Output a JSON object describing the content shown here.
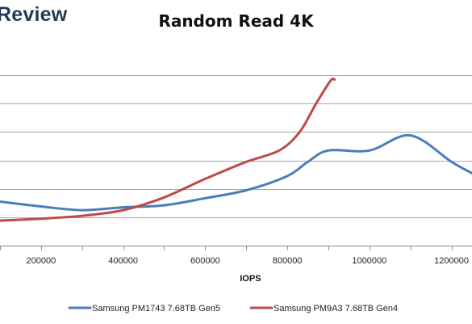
{
  "brand": {
    "text": "Review"
  },
  "chart_data": {
    "type": "line",
    "title": "Random Read 4K",
    "xlabel": "IOPS",
    "ylabel": "",
    "xlim": [
      100000,
      1250000
    ],
    "ylim": [
      0,
      7
    ],
    "x_ticks": [
      200000,
      400000,
      600000,
      800000,
      1000000,
      1200000
    ],
    "x_tick_labels": [
      "200000",
      "400000",
      "600000",
      "800000",
      "1000000",
      "1200000"
    ],
    "y_gridlines": [
      1,
      2,
      3,
      4,
      5,
      6
    ],
    "grid": true,
    "legend_position": "bottom",
    "series": [
      {
        "name": "Samsung PM1743 7.68TB Gen5",
        "color": "#4a7ebb",
        "points": [
          [
            100000,
            1.55
          ],
          [
            200000,
            1.38
          ],
          [
            300000,
            1.25
          ],
          [
            400000,
            1.35
          ],
          [
            500000,
            1.42
          ],
          [
            600000,
            1.67
          ],
          [
            700000,
            1.95
          ],
          [
            800000,
            2.45
          ],
          [
            850000,
            2.95
          ],
          [
            900000,
            3.35
          ],
          [
            1000000,
            3.35
          ],
          [
            1100000,
            3.88
          ],
          [
            1200000,
            2.95
          ],
          [
            1250000,
            2.55
          ]
        ]
      },
      {
        "name": "Samsung PM9A3 7.68TB Gen4",
        "color": "#be4b48",
        "points": [
          [
            100000,
            0.88
          ],
          [
            200000,
            0.95
          ],
          [
            300000,
            1.05
          ],
          [
            400000,
            1.25
          ],
          [
            500000,
            1.7
          ],
          [
            600000,
            2.35
          ],
          [
            700000,
            2.95
          ],
          [
            780000,
            3.35
          ],
          [
            830000,
            4.0
          ],
          [
            870000,
            5.0
          ],
          [
            905000,
            5.8
          ],
          [
            915000,
            5.85
          ]
        ]
      }
    ]
  }
}
